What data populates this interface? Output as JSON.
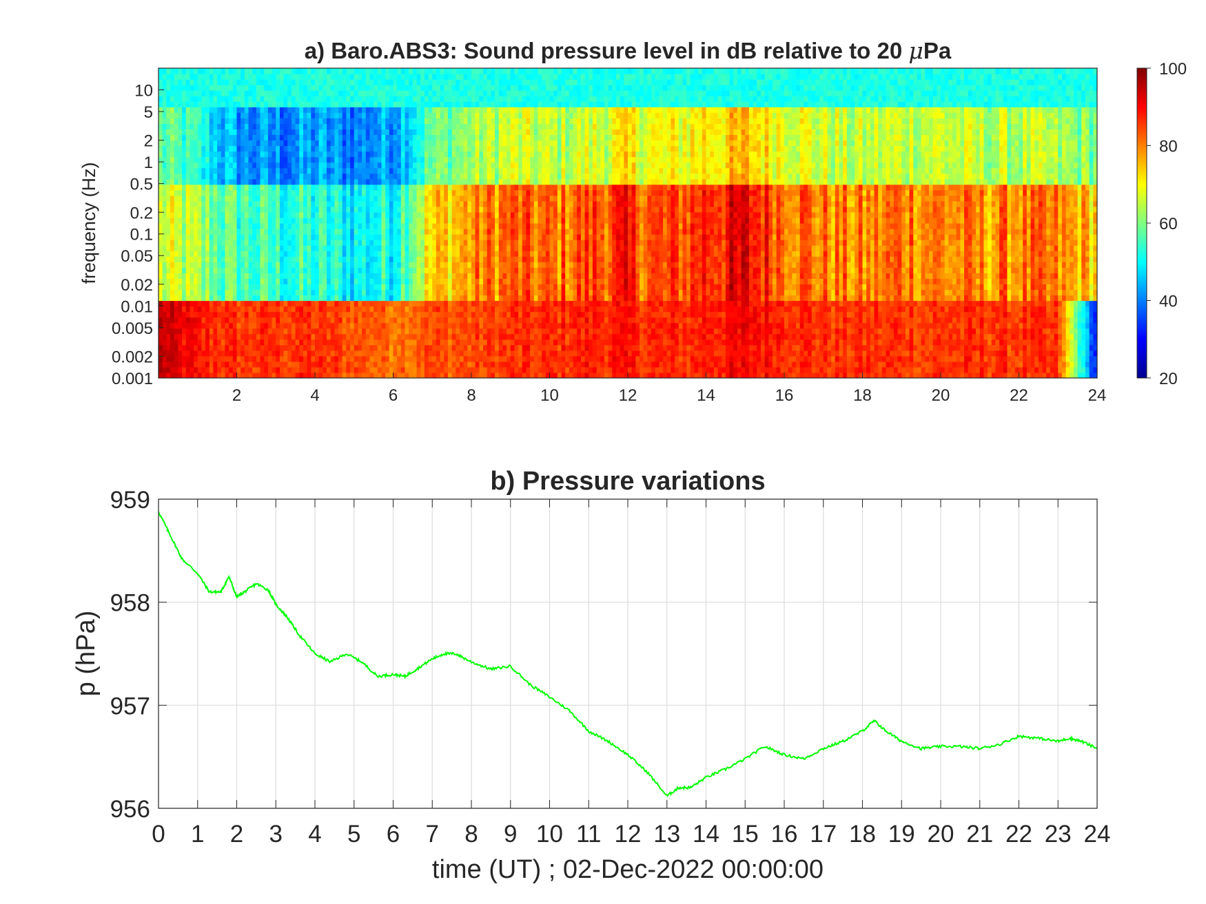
{
  "chart_data": [
    {
      "type": "heatmap",
      "title": "a) Baro.ABS3: Sound pressure level in dB relative to 20 μPa",
      "title_main": "a) Baro.ABS3: Sound pressure level in dB relative to 20 ",
      "title_mu": "μ",
      "title_unit": "Pa",
      "xlabel": "",
      "ylabel": "frequency (Hz)",
      "xlim": [
        0,
        24
      ],
      "ylim": [
        0.001,
        20
      ],
      "yscale": "log",
      "x_ticks": [
        "2",
        "4",
        "6",
        "8",
        "10",
        "12",
        "14",
        "16",
        "18",
        "20",
        "22",
        "24"
      ],
      "y_ticks": [
        {
          "v": 10,
          "label": "10"
        },
        {
          "v": 5,
          "label": "5"
        },
        {
          "v": 2,
          "label": "2"
        },
        {
          "v": 1,
          "label": "1"
        },
        {
          "v": 0.5,
          "label": "0.5"
        },
        {
          "v": 0.2,
          "label": "0.2"
        },
        {
          "v": 0.1,
          "label": "0.1"
        },
        {
          "v": 0.05,
          "label": "0.05"
        },
        {
          "v": 0.02,
          "label": "0.02"
        },
        {
          "v": 0.01,
          "label": "0.01"
        },
        {
          "v": 0.005,
          "label": "0.005"
        },
        {
          "v": 0.002,
          "label": "0.002"
        },
        {
          "v": 0.001,
          "label": "0.001"
        }
      ],
      "colorbar": {
        "min": 20,
        "max": 100,
        "ticks": [
          "100",
          "80",
          "60",
          "40",
          "20"
        ],
        "colormap": "jet"
      },
      "approx_levels_db": {
        "time_hours": [
          0,
          1,
          2,
          3,
          4,
          5,
          6,
          7,
          8,
          9,
          10,
          11,
          12,
          13,
          14,
          15,
          16,
          17,
          18,
          19,
          20,
          21,
          22,
          23,
          24
        ],
        "above_5Hz": 52,
        "band_0.5_to_5Hz": [
          58,
          52,
          42,
          40,
          42,
          40,
          44,
          58,
          62,
          66,
          64,
          66,
          70,
          68,
          72,
          74,
          70,
          66,
          64,
          66,
          66,
          64,
          64,
          62,
          60
        ],
        "band_0.02_to_0.5Hz": [
          66,
          62,
          56,
          54,
          52,
          50,
          52,
          72,
          78,
          82,
          80,
          84,
          86,
          82,
          88,
          90,
          84,
          80,
          78,
          82,
          80,
          78,
          80,
          78,
          74
        ],
        "band_0.001_to_0.01Hz": [
          95,
          88,
          86,
          86,
          86,
          84,
          82,
          84,
          84,
          86,
          86,
          88,
          88,
          86,
          88,
          90,
          88,
          86,
          86,
          86,
          86,
          86,
          86,
          85,
          30
        ]
      }
    },
    {
      "type": "line",
      "title": "b) Pressure variations",
      "xlabel": "time (UT) ; 02-Dec-2022 00:00:00",
      "ylabel": "p (hPa)",
      "xlim": [
        0,
        24
      ],
      "ylim": [
        956,
        959
      ],
      "grid": true,
      "x_ticks": [
        "0",
        "1",
        "2",
        "3",
        "4",
        "5",
        "6",
        "7",
        "8",
        "9",
        "10",
        "11",
        "12",
        "13",
        "14",
        "15",
        "16",
        "17",
        "18",
        "19",
        "20",
        "21",
        "22",
        "23",
        "24"
      ],
      "y_ticks": [
        "959",
        "958",
        "957",
        "956"
      ],
      "series": [
        {
          "color": "#00ff00",
          "x": [
            0,
            0.3,
            0.6,
            1,
            1.3,
            1.6,
            1.8,
            2,
            2.2,
            2.5,
            2.8,
            3,
            3.3,
            3.6,
            4,
            4.4,
            4.8,
            5.2,
            5.6,
            6,
            6.3,
            6.6,
            7,
            7.3,
            7.6,
            8,
            8.5,
            9,
            9.5,
            10,
            10.5,
            11,
            11.5,
            12,
            12.5,
            13,
            13.3,
            13.6,
            14,
            14.5,
            15,
            15.5,
            16,
            16.5,
            17,
            17.5,
            18,
            18.3,
            18.6,
            19,
            19.5,
            20,
            20.5,
            21,
            21.5,
            22,
            22.5,
            23,
            23.3,
            23.6,
            24
          ],
          "values": [
            958.88,
            958.65,
            958.42,
            958.28,
            958.1,
            958.1,
            958.25,
            958.05,
            958.1,
            958.18,
            958.12,
            957.98,
            957.85,
            957.68,
            957.5,
            957.42,
            957.5,
            957.42,
            957.28,
            957.3,
            957.28,
            957.35,
            957.45,
            957.5,
            957.5,
            957.42,
            957.35,
            957.38,
            957.2,
            957.08,
            956.95,
            956.75,
            956.65,
            956.52,
            956.35,
            956.12,
            956.2,
            956.2,
            956.3,
            956.38,
            956.48,
            956.6,
            956.52,
            956.48,
            956.58,
            956.65,
            956.75,
            956.85,
            956.75,
            956.65,
            956.58,
            956.6,
            956.6,
            956.58,
            956.62,
            956.7,
            956.68,
            956.65,
            956.68,
            956.65,
            956.58
          ]
        }
      ]
    }
  ]
}
